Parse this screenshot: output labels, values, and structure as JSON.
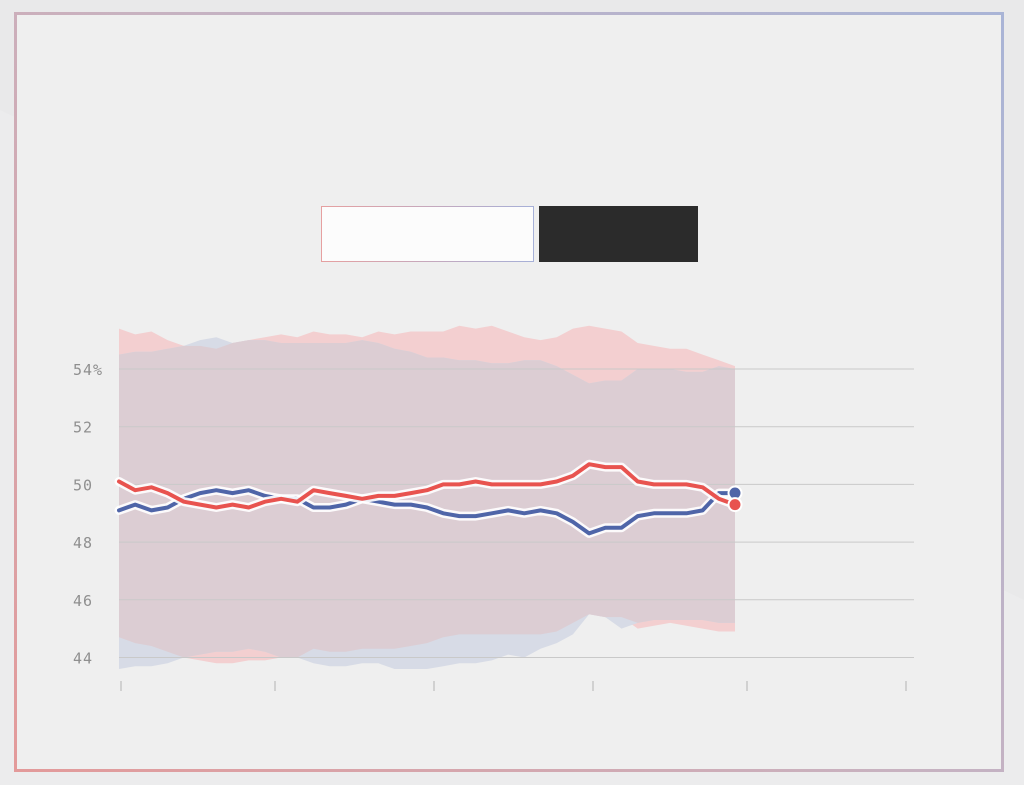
{
  "toggles": {
    "left_label": "",
    "right_label": ""
  },
  "colors": {
    "red": "#e8534f",
    "blue": "#4f65a8",
    "red_band": "#f3cfd0",
    "blue_band": "#d7dbe6",
    "overlap_band": "#dccdd3",
    "grid": "#c9c9c9",
    "tick_label": "#8f8f8f",
    "page_bg": "#efefef"
  },
  "chart_data": {
    "type": "line",
    "title": "",
    "xlabel": "",
    "ylabel": "",
    "ylim": [
      43.6,
      55.0
    ],
    "x_tick_labels": [
      "",
      "",
      "",
      "",
      "",
      ""
    ],
    "y_tick_labels": [
      "54%",
      "52",
      "50",
      "48",
      "46",
      "44"
    ],
    "y_ticks": [
      54,
      52,
      50,
      48,
      46,
      44
    ],
    "grid": true,
    "legend": "none",
    "series": [
      {
        "color": "#e8534f",
        "values": [
          50.1,
          49.8,
          49.9,
          49.7,
          49.4,
          49.3,
          49.2,
          49.3,
          49.2,
          49.4,
          49.5,
          49.4,
          49.8,
          49.7,
          49.6,
          49.5,
          49.6,
          49.6,
          49.7,
          49.8,
          50.0,
          50.0,
          50.1,
          50.0,
          50.0,
          50.0,
          50.0,
          50.1,
          50.3,
          50.7,
          50.6,
          50.6,
          50.1,
          50.0,
          50.0,
          50.0,
          49.9,
          49.5,
          49.3
        ],
        "upper": [
          55.4,
          55.2,
          55.3,
          55.0,
          54.8,
          54.8,
          54.7,
          54.9,
          55.0,
          55.1,
          55.2,
          55.1,
          55.3,
          55.2,
          55.2,
          55.1,
          55.3,
          55.2,
          55.3,
          55.3,
          55.3,
          55.5,
          55.4,
          55.5,
          55.3,
          55.1,
          55.0,
          55.1,
          55.4,
          55.5,
          55.4,
          55.3,
          54.9,
          54.8,
          54.7,
          54.7,
          54.5,
          54.3,
          54.1
        ],
        "lower": [
          44.7,
          44.5,
          44.4,
          44.2,
          44.0,
          43.9,
          43.8,
          43.8,
          43.9,
          43.9,
          44.0,
          44.0,
          44.3,
          44.2,
          44.2,
          44.3,
          44.3,
          44.3,
          44.4,
          44.5,
          44.7,
          44.8,
          44.8,
          44.8,
          44.8,
          44.8,
          44.8,
          44.9,
          45.2,
          45.5,
          45.4,
          45.4,
          45.0,
          45.1,
          45.2,
          45.1,
          45.0,
          44.9,
          44.9
        ]
      },
      {
        "color": "#4f65a8",
        "values": [
          49.1,
          49.3,
          49.1,
          49.2,
          49.5,
          49.7,
          49.8,
          49.7,
          49.8,
          49.6,
          49.5,
          49.5,
          49.2,
          49.2,
          49.3,
          49.5,
          49.4,
          49.3,
          49.3,
          49.2,
          49.0,
          48.9,
          48.9,
          49.0,
          49.1,
          49.0,
          49.1,
          49.0,
          48.7,
          48.3,
          48.5,
          48.5,
          48.9,
          49.0,
          49.0,
          49.0,
          49.1,
          49.7,
          49.7
        ],
        "upper": [
          54.5,
          54.6,
          54.6,
          54.7,
          54.8,
          55.0,
          55.1,
          54.9,
          55.0,
          55.0,
          54.9,
          54.9,
          54.9,
          54.9,
          54.9,
          55.0,
          54.9,
          54.7,
          54.6,
          54.4,
          54.4,
          54.3,
          54.3,
          54.2,
          54.2,
          54.3,
          54.3,
          54.1,
          53.8,
          53.5,
          53.6,
          53.6,
          54.0,
          54.0,
          54.0,
          53.9,
          53.9,
          54.1,
          54.0
        ],
        "lower": [
          43.6,
          43.7,
          43.7,
          43.8,
          44.0,
          44.1,
          44.2,
          44.2,
          44.3,
          44.2,
          44.0,
          44.0,
          43.8,
          43.7,
          43.7,
          43.8,
          43.8,
          43.6,
          43.6,
          43.6,
          43.7,
          43.8,
          43.8,
          43.9,
          44.1,
          44.0,
          44.3,
          44.5,
          44.8,
          45.5,
          45.4,
          45.0,
          45.2,
          45.3,
          45.3,
          45.3,
          45.3,
          45.2,
          45.2
        ]
      }
    ]
  }
}
